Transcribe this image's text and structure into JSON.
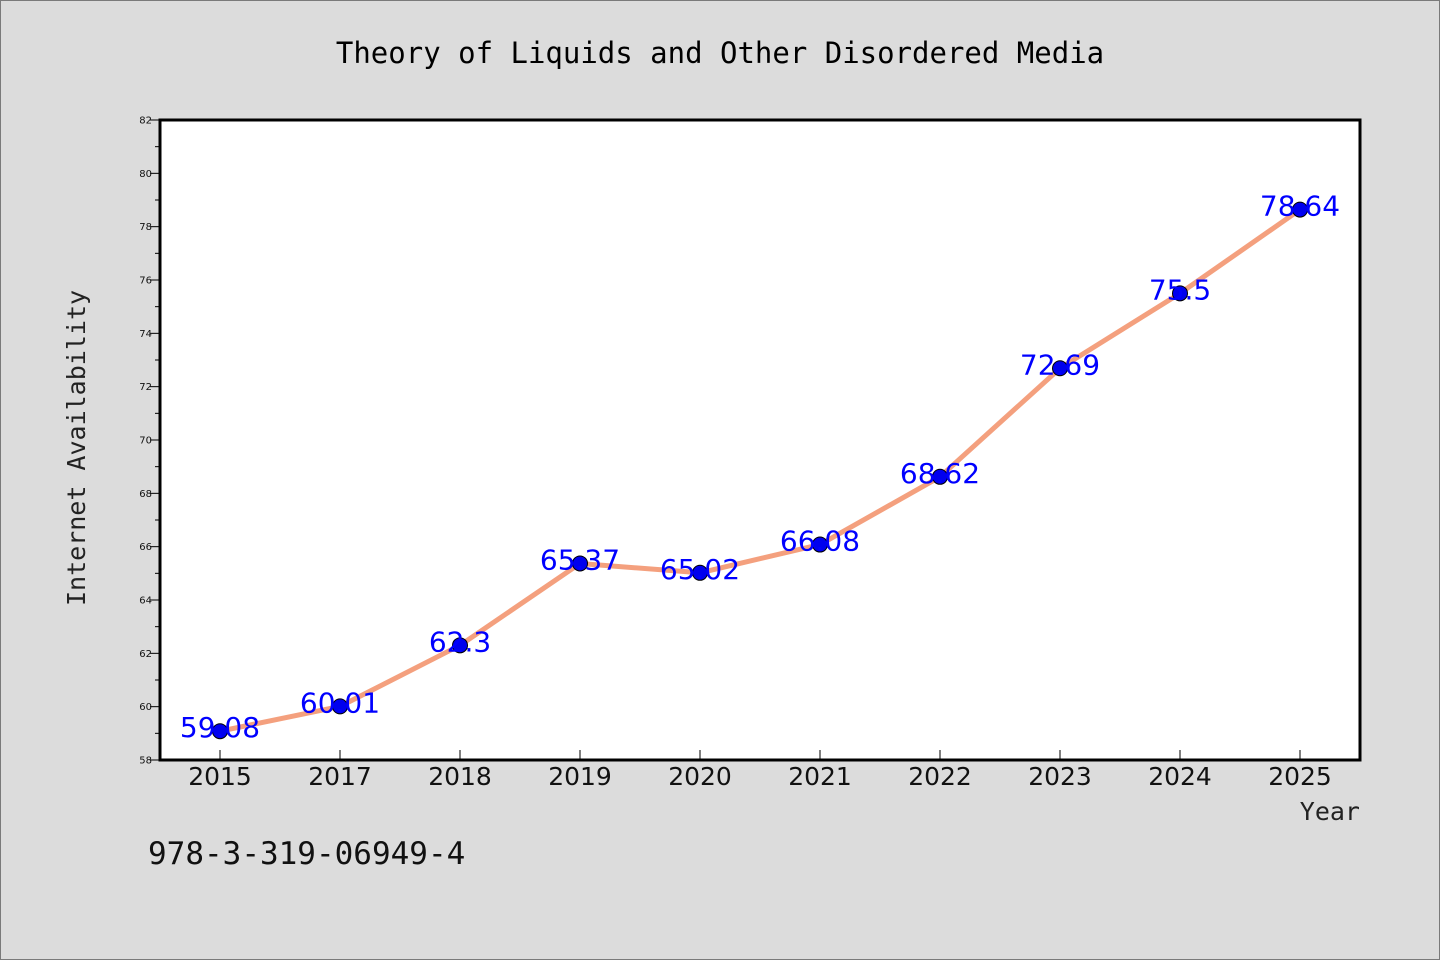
{
  "chart_data": {
    "type": "line",
    "title": "Theory of Liquids and Other Disordered Media",
    "xlabel": "Year",
    "ylabel": "Internet Availability",
    "categories": [
      "2015",
      "2017",
      "2018",
      "2019",
      "2020",
      "2021",
      "2022",
      "2023",
      "2024",
      "2025"
    ],
    "series": [
      {
        "values": [
          59.08,
          60.01,
          62.3,
          65.37,
          65.02,
          66.08,
          68.62,
          72.69,
          75.5,
          78.64
        ],
        "data_labels": [
          "59.08",
          "60.01",
          "62.3",
          "65.37",
          "65.02",
          "66.08",
          "68.62",
          "72.69",
          "75.5",
          "78.64"
        ],
        "line_color": "#f4a07e",
        "marker_color": "#0000ee",
        "label_color": "#0000ff"
      }
    ],
    "ylim": [
      58,
      82
    ],
    "yticks": [
      "58",
      "60",
      "62",
      "64",
      "66",
      "68",
      "70",
      "72",
      "74",
      "76",
      "78",
      "80",
      "82"
    ],
    "grid": false,
    "legend": "none",
    "annotation": "978-3-319-06949-4"
  },
  "colors": {
    "background": "#dcdcdc",
    "plot_background": "#ffffff",
    "axis": "#000000"
  }
}
